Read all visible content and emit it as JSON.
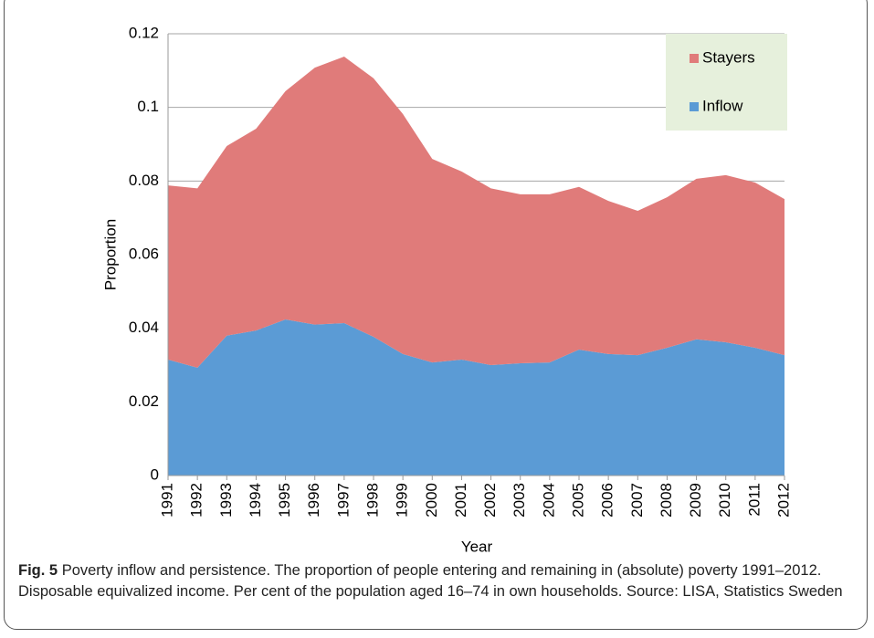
{
  "chart_data": {
    "type": "stacked_area",
    "y_label": "Proportion",
    "x_label": "Year",
    "categories": [
      "1991",
      "1992",
      "1993",
      "1994",
      "1995",
      "1996",
      "1997",
      "1998",
      "1999",
      "2000",
      "2001",
      "2002",
      "2003",
      "2004",
      "2005",
      "2006",
      "2007",
      "2008",
      "2009",
      "2010",
      "2011",
      "2012"
    ],
    "series": [
      {
        "name": "Inflow",
        "color": "#5b9bd5",
        "values": [
          0.0315,
          0.0293,
          0.038,
          0.0394,
          0.0424,
          0.041,
          0.0414,
          0.0377,
          0.033,
          0.0307,
          0.0315,
          0.03,
          0.0305,
          0.0307,
          0.0342,
          0.033,
          0.0327,
          0.0347,
          0.037,
          0.0362,
          0.0347,
          0.0327
        ]
      },
      {
        "name": "Stayers",
        "color": "#e07b7a",
        "values": [
          0.0473,
          0.0487,
          0.0515,
          0.0548,
          0.062,
          0.0698,
          0.0724,
          0.0702,
          0.0652,
          0.0553,
          0.0511,
          0.048,
          0.0459,
          0.0457,
          0.0442,
          0.0416,
          0.0392,
          0.0409,
          0.0436,
          0.0454,
          0.0449,
          0.0424
        ]
      }
    ],
    "ylim": [
      0,
      0.12
    ],
    "yticks": [
      0,
      0.02,
      0.04,
      0.06,
      0.08,
      0.1,
      0.12
    ],
    "grid": true,
    "legend": "top-right",
    "legend_color": "#e6f0dc",
    "caption_label": "Fig. 5",
    "caption": "Poverty inflow and persistence. The proportion of people entering and remaining in (absolute) poverty 1991–2012. Disposable equivalized income. Per cent of the population aged 16–74 in own households. Source: LISA, Statistics Sweden"
  }
}
